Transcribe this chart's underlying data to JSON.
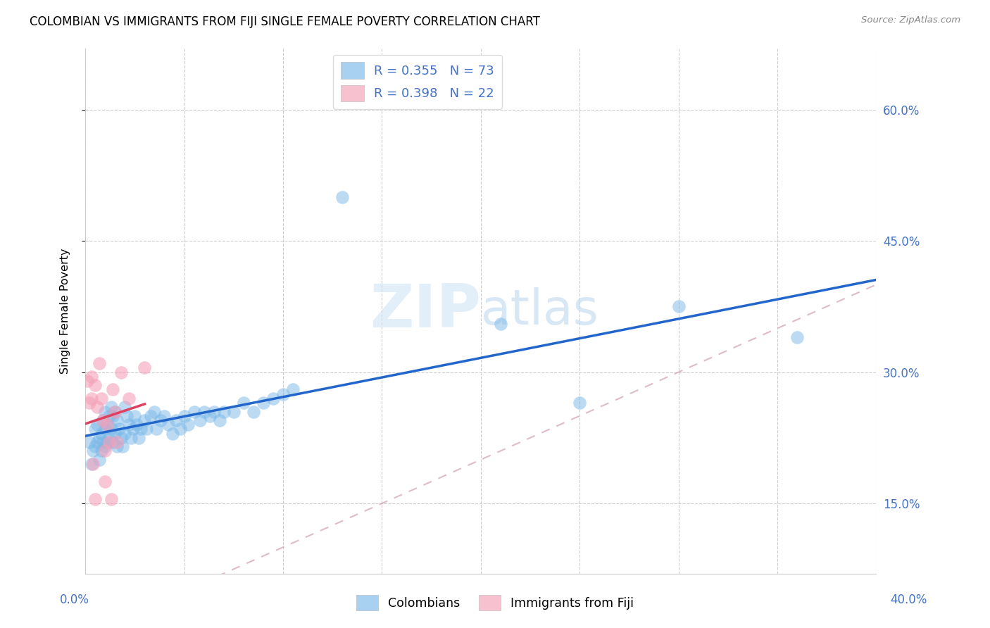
{
  "title": "COLOMBIAN VS IMMIGRANTS FROM FIJI SINGLE FEMALE POVERTY CORRELATION CHART",
  "source": "Source: ZipAtlas.com",
  "ylabel": "Single Female Poverty",
  "ytick_values": [
    0.15,
    0.3,
    0.45,
    0.6
  ],
  "xlim": [
    0.0,
    0.4
  ],
  "ylim": [
    0.07,
    0.67
  ],
  "watermark": "ZIPatlas",
  "blue_color": "#7ab8e8",
  "pink_color": "#f4a0b8",
  "blue_line_color": "#2266cc",
  "pink_line_color": "#e04060",
  "pink_dash_color": "#f0a0b8",
  "colombians_x": [
    0.002,
    0.003,
    0.004,
    0.005,
    0.005,
    0.006,
    0.006,
    0.007,
    0.007,
    0.008,
    0.008,
    0.009,
    0.009,
    0.01,
    0.01,
    0.01,
    0.011,
    0.011,
    0.012,
    0.012,
    0.013,
    0.013,
    0.014,
    0.014,
    0.015,
    0.015,
    0.016,
    0.016,
    0.017,
    0.018,
    0.019,
    0.02,
    0.02,
    0.021,
    0.022,
    0.023,
    0.024,
    0.025,
    0.026,
    0.027,
    0.028,
    0.03,
    0.031,
    0.033,
    0.035,
    0.036,
    0.038,
    0.04,
    0.042,
    0.044,
    0.046,
    0.048,
    0.05,
    0.052,
    0.055,
    0.058,
    0.06,
    0.063,
    0.065,
    0.068,
    0.07,
    0.075,
    0.08,
    0.085,
    0.09,
    0.095,
    0.1,
    0.105,
    0.13,
    0.21,
    0.25,
    0.3,
    0.36
  ],
  "colombians_y": [
    0.22,
    0.195,
    0.21,
    0.235,
    0.215,
    0.24,
    0.22,
    0.225,
    0.2,
    0.23,
    0.21,
    0.245,
    0.22,
    0.255,
    0.235,
    0.215,
    0.24,
    0.22,
    0.25,
    0.225,
    0.26,
    0.235,
    0.25,
    0.22,
    0.255,
    0.23,
    0.245,
    0.215,
    0.235,
    0.225,
    0.215,
    0.26,
    0.23,
    0.25,
    0.24,
    0.225,
    0.235,
    0.25,
    0.24,
    0.225,
    0.235,
    0.245,
    0.235,
    0.25,
    0.255,
    0.235,
    0.245,
    0.25,
    0.24,
    0.23,
    0.245,
    0.235,
    0.25,
    0.24,
    0.255,
    0.245,
    0.255,
    0.25,
    0.255,
    0.245,
    0.255,
    0.255,
    0.265,
    0.255,
    0.265,
    0.27,
    0.275,
    0.28,
    0.5,
    0.355,
    0.265,
    0.375,
    0.34
  ],
  "fiji_x": [
    0.001,
    0.002,
    0.003,
    0.003,
    0.004,
    0.005,
    0.005,
    0.006,
    0.007,
    0.008,
    0.009,
    0.01,
    0.01,
    0.011,
    0.012,
    0.013,
    0.014,
    0.015,
    0.016,
    0.018,
    0.022,
    0.03
  ],
  "fiji_y": [
    0.29,
    0.265,
    0.295,
    0.27,
    0.195,
    0.155,
    0.285,
    0.26,
    0.31,
    0.27,
    0.245,
    0.21,
    0.175,
    0.24,
    0.22,
    0.155,
    0.28,
    0.255,
    0.22,
    0.3,
    0.27,
    0.305
  ]
}
